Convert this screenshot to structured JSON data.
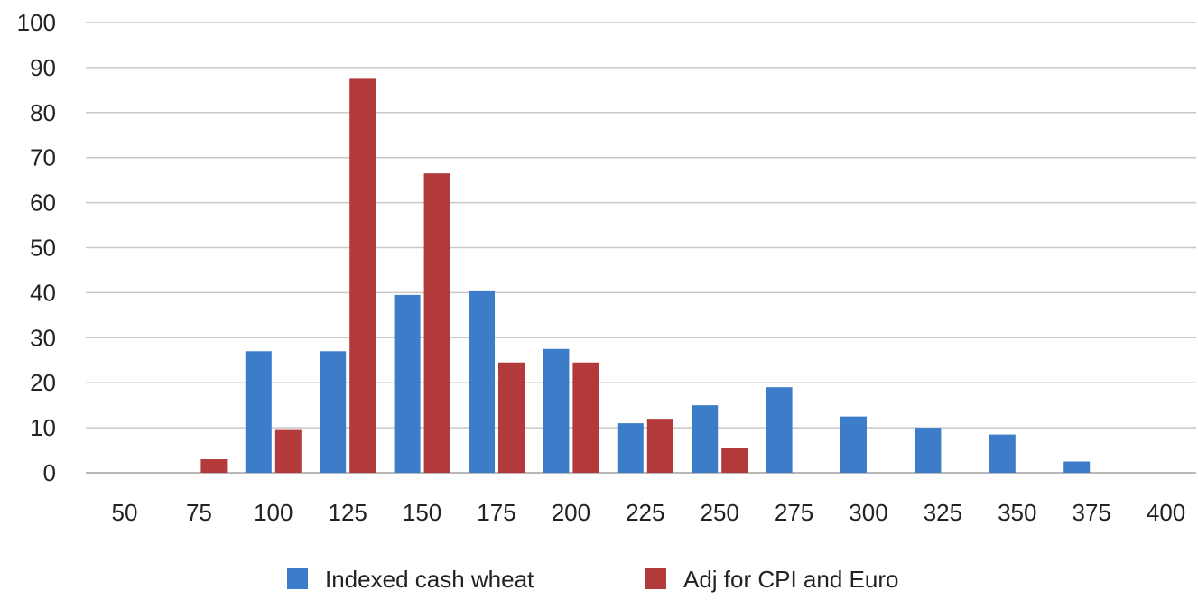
{
  "chart_data": {
    "type": "bar",
    "title": "",
    "xlabel": "",
    "ylabel": "",
    "categories": [
      "50",
      "75",
      "100",
      "125",
      "150",
      "175",
      "200",
      "225",
      "250",
      "275",
      "300",
      "325",
      "350",
      "375",
      "400"
    ],
    "series": [
      {
        "name": "Indexed cash wheat",
        "color": "#3d7cc9",
        "values": [
          0,
          0,
          27,
          27,
          39.5,
          40.5,
          27.5,
          11,
          15,
          19,
          12.5,
          10,
          8.5,
          2.5,
          0
        ]
      },
      {
        "name": "Adj for CPI and Euro",
        "color": "#b33a3a",
        "values": [
          0,
          3,
          9.5,
          87.5,
          66.5,
          24.5,
          24.5,
          12,
          5.5,
          0,
          0,
          0,
          0,
          0,
          0
        ]
      }
    ],
    "ylim": [
      0,
      100
    ],
    "yticks": [
      0,
      10,
      20,
      30,
      40,
      50,
      60,
      70,
      80,
      90,
      100
    ],
    "grid": true,
    "legend_position": "bottom"
  }
}
